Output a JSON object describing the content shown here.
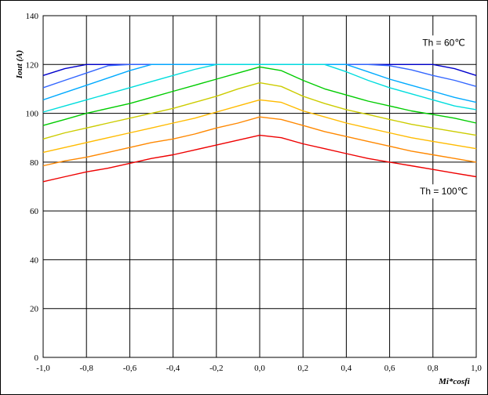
{
  "chart_data": {
    "type": "line",
    "title": "",
    "xlabel": "Mi*cosfi",
    "ylabel": "Iout (A)",
    "xlim": [
      -1.0,
      1.0
    ],
    "ylim": [
      0,
      140
    ],
    "grid": true,
    "x_ticks": [
      "-1,0",
      "-0,8",
      "-0,6",
      "-0,4",
      "-0,2",
      "0,0",
      "0,2",
      "0,4",
      "0,6",
      "0,8",
      "1,0"
    ],
    "y_ticks": [
      "0",
      "20",
      "40",
      "60",
      "80",
      "100",
      "120",
      "140"
    ],
    "x": [
      -1.0,
      -0.9,
      -0.8,
      -0.7,
      -0.6,
      -0.5,
      -0.4,
      -0.3,
      -0.2,
      -0.1,
      0.0,
      0.1,
      0.2,
      0.3,
      0.4,
      0.5,
      0.6,
      0.7,
      0.8,
      0.9,
      1.0
    ],
    "annotations": [
      {
        "text": "Th = 60℃",
        "x": 0.85,
        "y": 129
      },
      {
        "text": "Th = 100℃",
        "x": 0.85,
        "y": 68
      }
    ],
    "series": [
      {
        "color": "#0000cc",
        "values": [
          115.5,
          118.3,
          120.0,
          120.0,
          120.0,
          120.0,
          120.0,
          120.0,
          120.0,
          120.0,
          120.0,
          120.0,
          120.0,
          120.0,
          120.0,
          120.0,
          120.0,
          120.0,
          120.0,
          118.3,
          115.5
        ]
      },
      {
        "color": "#3366ff",
        "values": [
          110.5,
          113.5,
          116.5,
          119.5,
          120.0,
          120.0,
          120.0,
          120.0,
          120.0,
          120.0,
          120.0,
          120.0,
          120.0,
          120.0,
          120.0,
          120.0,
          119.5,
          117.8,
          115.5,
          113.5,
          111.0
        ]
      },
      {
        "color": "#00aaff",
        "values": [
          105.5,
          108.5,
          111.5,
          114.5,
          117.5,
          120.0,
          120.0,
          120.0,
          120.0,
          120.0,
          120.0,
          120.0,
          120.0,
          120.0,
          120.0,
          117.0,
          114.0,
          111.5,
          109.0,
          106.5,
          104.5
        ]
      },
      {
        "color": "#00dddd",
        "values": [
          100.5,
          103.0,
          105.5,
          108.0,
          110.5,
          113.0,
          115.5,
          118.0,
          120.0,
          120.0,
          120.0,
          120.0,
          120.0,
          120.0,
          117.0,
          113.5,
          110.5,
          108.0,
          105.5,
          103.0,
          101.5
        ]
      },
      {
        "color": "#00cc00",
        "values": [
          95.0,
          97.5,
          100.0,
          102.0,
          104.0,
          106.5,
          109.0,
          111.5,
          114.0,
          116.5,
          119.0,
          117.5,
          113.5,
          110.0,
          107.5,
          105.0,
          103.0,
          101.0,
          99.5,
          98.0,
          96.0
        ]
      },
      {
        "color": "#cccc00",
        "values": [
          89.5,
          92.0,
          94.0,
          96.0,
          98.0,
          100.0,
          102.0,
          104.5,
          107.0,
          110.0,
          112.5,
          111.0,
          107.0,
          104.0,
          101.5,
          99.5,
          97.5,
          95.5,
          94.0,
          92.5,
          91.0
        ]
      },
      {
        "color": "#ffbb00",
        "values": [
          84.0,
          86.0,
          88.0,
          90.0,
          92.0,
          94.0,
          96.0,
          98.0,
          100.5,
          103.0,
          105.5,
          104.5,
          101.0,
          98.5,
          96.0,
          94.0,
          92.0,
          90.0,
          88.5,
          87.0,
          85.5
        ]
      },
      {
        "color": "#ff8800",
        "values": [
          78.5,
          80.5,
          82.0,
          84.0,
          86.0,
          88.0,
          89.5,
          91.5,
          94.0,
          96.0,
          98.5,
          97.5,
          95.0,
          92.5,
          90.5,
          88.5,
          86.5,
          84.5,
          83.0,
          81.5,
          80.0
        ]
      },
      {
        "color": "#ee0000",
        "values": [
          72.0,
          74.0,
          76.0,
          77.5,
          79.5,
          81.5,
          83.0,
          85.0,
          87.0,
          89.0,
          91.0,
          90.0,
          87.5,
          85.5,
          83.5,
          81.5,
          80.0,
          78.5,
          77.0,
          75.5,
          74.0
        ]
      }
    ]
  }
}
